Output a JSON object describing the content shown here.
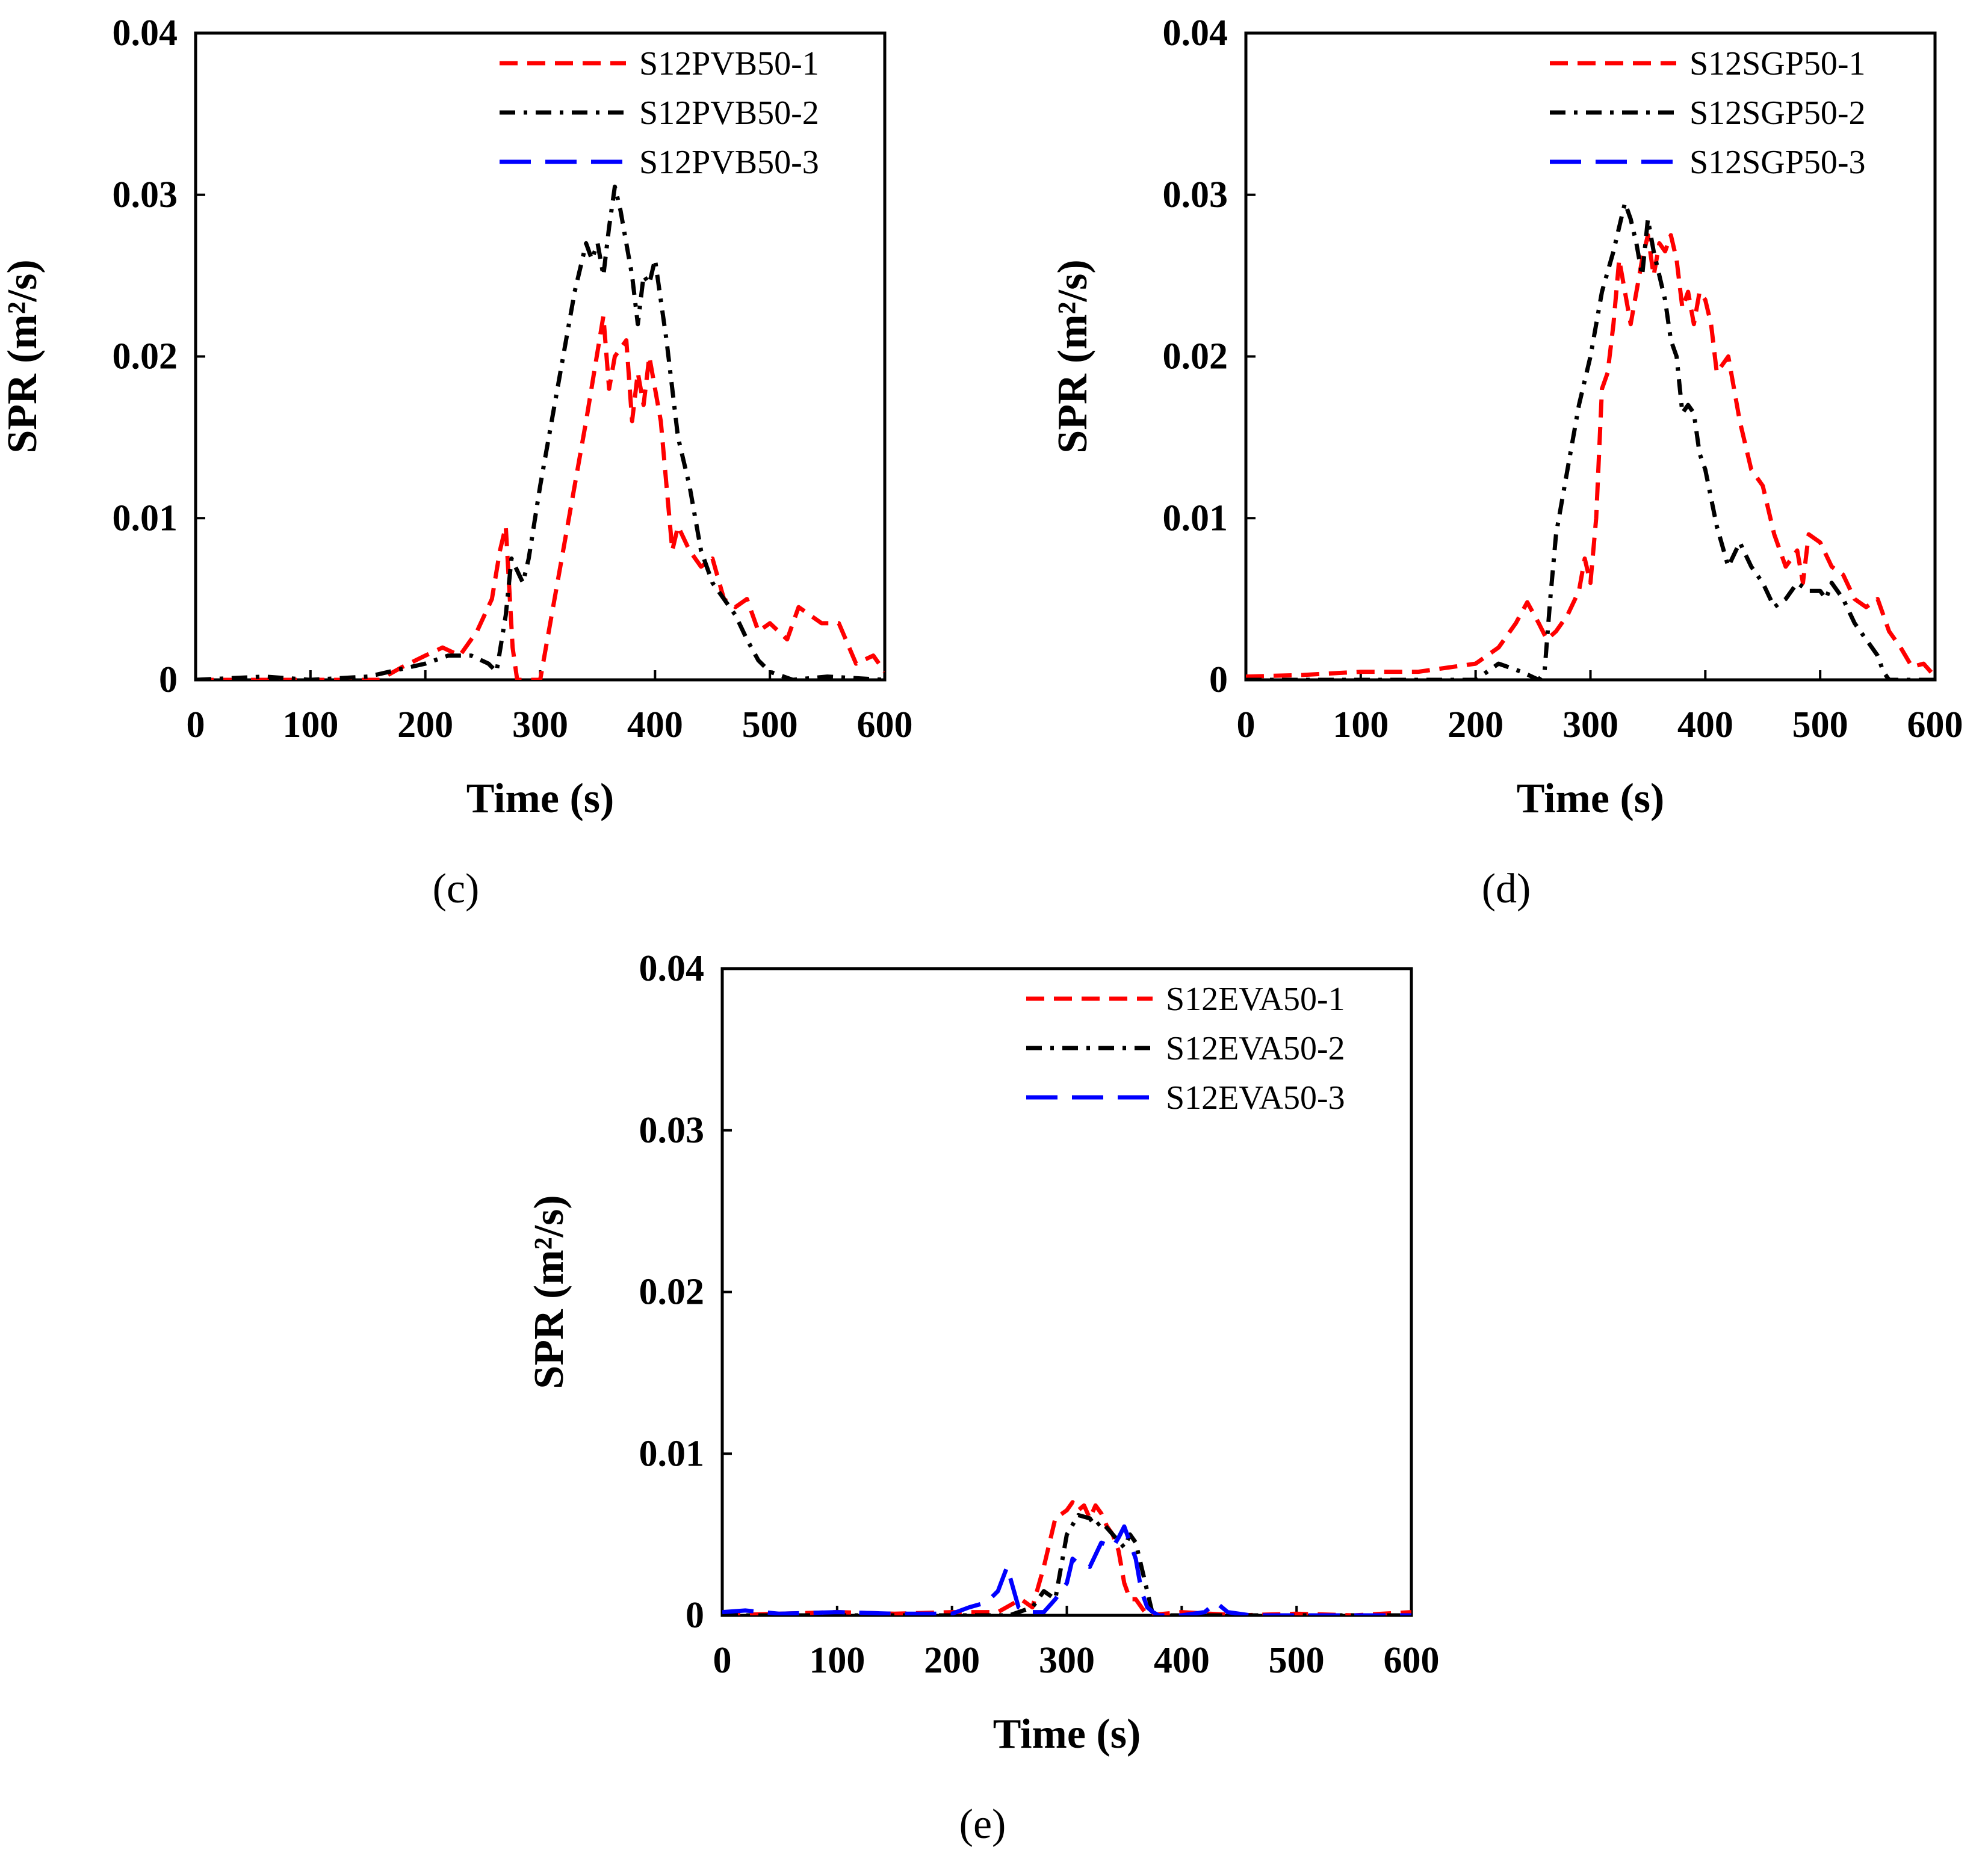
{
  "colors": {
    "s1": "#ff0000",
    "s2": "#000000",
    "s3": "#0000ff"
  },
  "chart_data": [
    {
      "type": "line",
      "panel_label": "(c)",
      "xlabel": "Time (s)",
      "ylabel": "SPR (m²/s)",
      "xlim": [
        0,
        600
      ],
      "ylim": [
        0,
        0.04
      ],
      "xticks": [
        0,
        100,
        200,
        300,
        400,
        500,
        600
      ],
      "yticks": [
        0,
        0.01,
        0.02,
        0.03,
        0.04
      ],
      "xtick_labels": [
        "0",
        "100",
        "200",
        "300",
        "400",
        "500",
        "600"
      ],
      "ytick_labels": [
        "0",
        "0.01",
        "0.02",
        "0.03",
        "0.04"
      ],
      "legend": "top-right",
      "series": [
        {
          "name": "S12PVB50-1",
          "style": "dashed",
          "color": "#ff0000",
          "x": [
            0,
            100,
            160,
            180,
            200,
            215,
            230,
            245,
            258,
            265,
            270,
            276,
            280,
            300,
            305,
            320,
            340,
            355,
            360,
            365,
            375,
            380,
            385,
            390,
            395,
            405,
            410,
            415,
            420,
            430,
            440,
            450,
            460,
            470,
            480,
            490,
            500,
            515,
            525,
            535,
            545,
            560,
            575,
            590,
            600
          ],
          "y": [
            0,
            0,
            0,
            0.0008,
            0.0015,
            0.002,
            0.0015,
            0.003,
            0.005,
            0.008,
            0.0095,
            0.002,
            0,
            0,
            0.002,
            0.008,
            0.016,
            0.0225,
            0.018,
            0.02,
            0.021,
            0.016,
            0.019,
            0.017,
            0.02,
            0.016,
            0.012,
            0.008,
            0.0095,
            0.008,
            0.007,
            0.0075,
            0.005,
            0.0045,
            0.005,
            0.003,
            0.0035,
            0.0025,
            0.0045,
            0.004,
            0.0035,
            0.0035,
            0.001,
            0.0015,
            0.0005
          ]
        },
        {
          "name": "S12PVB50-2",
          "style": "dashdot",
          "color": "#000000",
          "x": [
            0,
            60,
            100,
            150,
            200,
            220,
            240,
            255,
            262,
            270,
            275,
            285,
            290,
            300,
            310,
            320,
            330,
            340,
            345,
            350,
            355,
            360,
            365,
            370,
            375,
            380,
            385,
            390,
            395,
            400,
            410,
            420,
            430,
            440,
            450,
            460,
            470,
            480,
            490,
            500,
            520,
            550,
            600
          ],
          "y": [
            0,
            0.0002,
            0,
            0.0002,
            0.001,
            0.0015,
            0.0015,
            0.001,
            0.0005,
            0.004,
            0.0075,
            0.006,
            0.0075,
            0.012,
            0.016,
            0.02,
            0.024,
            0.027,
            0.026,
            0.027,
            0.025,
            0.028,
            0.0305,
            0.029,
            0.027,
            0.025,
            0.022,
            0.025,
            0.0245,
            0.026,
            0.021,
            0.015,
            0.012,
            0.008,
            0.006,
            0.005,
            0.004,
            0.0025,
            0.0012,
            0.0005,
            0,
            0.0002,
            0
          ]
        }
      ]
    },
    {
      "type": "line",
      "panel_label": "(d)",
      "xlabel": "Time (s)",
      "ylabel": "SPR (m²/s)",
      "xlim": [
        0,
        600
      ],
      "ylim": [
        0,
        0.04
      ],
      "xticks": [
        0,
        100,
        200,
        300,
        400,
        500,
        600
      ],
      "yticks": [
        0,
        0.01,
        0.02,
        0.03,
        0.04
      ],
      "xtick_labels": [
        "0",
        "100",
        "200",
        "300",
        "400",
        "500",
        "600"
      ],
      "ytick_labels": [
        "0",
        "0.01",
        "0.02",
        "0.03",
        "0.04"
      ],
      "legend": "top-right",
      "series": [
        {
          "name": "S12SGP50-1",
          "style": "dashed",
          "color": "#ff0000",
          "x": [
            0,
            50,
            100,
            150,
            180,
            200,
            220,
            235,
            245,
            255,
            262,
            270,
            280,
            290,
            295,
            300,
            305,
            310,
            315,
            320,
            325,
            330,
            335,
            345,
            350,
            355,
            360,
            365,
            370,
            375,
            380,
            385,
            390,
            395,
            400,
            405,
            410,
            420,
            430,
            440,
            450,
            460,
            470,
            480,
            485,
            490,
            500,
            510,
            520,
            530,
            540,
            550,
            560,
            570,
            580,
            590,
            600
          ],
          "y": [
            0.0002,
            0.0003,
            0.0005,
            0.0005,
            0.0008,
            0.001,
            0.002,
            0.0035,
            0.0048,
            0.0035,
            0.0025,
            0.003,
            0.004,
            0.0055,
            0.0075,
            0.006,
            0.01,
            0.018,
            0.019,
            0.022,
            0.026,
            0.024,
            0.022,
            0.026,
            0.0275,
            0.025,
            0.027,
            0.0265,
            0.0275,
            0.026,
            0.023,
            0.024,
            0.022,
            0.024,
            0.0235,
            0.022,
            0.019,
            0.02,
            0.016,
            0.013,
            0.012,
            0.009,
            0.007,
            0.008,
            0.006,
            0.009,
            0.0085,
            0.007,
            0.0065,
            0.005,
            0.0045,
            0.005,
            0.003,
            0.002,
            0.0008,
            0.001,
            0.0002
          ]
        },
        {
          "name": "S12SGP50-2",
          "style": "dashdot",
          "color": "#000000",
          "x": [
            0,
            50,
            100,
            150,
            200,
            210,
            220,
            240,
            255,
            260,
            265,
            270,
            280,
            290,
            300,
            310,
            320,
            325,
            330,
            335,
            340,
            345,
            350,
            355,
            360,
            365,
            370,
            375,
            380,
            385,
            390,
            395,
            400,
            410,
            420,
            430,
            440,
            450,
            460,
            470,
            480,
            490,
            500,
            505,
            510,
            520,
            530,
            540,
            550,
            555,
            560,
            600
          ],
          "y": [
            0,
            0,
            0,
            0,
            0,
            0.0005,
            0.001,
            0.0005,
            0,
            0.0005,
            0.005,
            0.009,
            0.013,
            0.017,
            0.02,
            0.024,
            0.0265,
            0.028,
            0.0295,
            0.0285,
            0.027,
            0.025,
            0.0285,
            0.0265,
            0.025,
            0.0235,
            0.021,
            0.02,
            0.0165,
            0.017,
            0.0165,
            0.014,
            0.013,
            0.0095,
            0.007,
            0.0085,
            0.007,
            0.006,
            0.0045,
            0.005,
            0.006,
            0.0055,
            0.0055,
            0.005,
            0.006,
            0.005,
            0.0035,
            0.0025,
            0.0015,
            0.0005,
            0,
            0
          ]
        }
      ]
    },
    {
      "type": "line",
      "panel_label": "(e)",
      "xlabel": "Time (s)",
      "ylabel": "SPR (m²/s)",
      "xlim": [
        0,
        600
      ],
      "ylim": [
        0,
        0.04
      ],
      "xticks": [
        0,
        100,
        200,
        300,
        400,
        500,
        600
      ],
      "yticks": [
        0,
        0.01,
        0.02,
        0.03,
        0.04
      ],
      "xtick_labels": [
        "0",
        "100",
        "200",
        "300",
        "400",
        "500",
        "600"
      ],
      "ytick_labels": [
        "0",
        "0.01",
        "0.02",
        "0.03",
        "0.04"
      ],
      "legend": "top-right",
      "series": [
        {
          "name": "S12EVA50-1",
          "style": "dashed",
          "color": "#ff0000",
          "x": [
            0,
            50,
            100,
            150,
            200,
            240,
            260,
            270,
            280,
            290,
            300,
            305,
            310,
            315,
            320,
            325,
            330,
            335,
            340,
            345,
            350,
            355,
            360,
            365,
            370,
            400,
            450,
            500,
            550,
            600
          ],
          "y": [
            0,
            0.0001,
            0.0002,
            0.0001,
            0.0002,
            0.0002,
            0.001,
            0.0005,
            0.003,
            0.006,
            0.0065,
            0.007,
            0.0065,
            0.0068,
            0.006,
            0.0068,
            0.0063,
            0.0055,
            0.005,
            0.004,
            0.002,
            0.001,
            0.001,
            0.0005,
            0,
            0.0002,
            0,
            0.0001,
            0,
            0.0002
          ]
        },
        {
          "name": "S12EVA50-2",
          "style": "dashdot",
          "color": "#000000",
          "x": [
            0,
            100,
            200,
            250,
            270,
            280,
            290,
            300,
            310,
            320,
            325,
            330,
            340,
            350,
            355,
            360,
            365,
            375,
            400,
            600
          ],
          "y": [
            0,
            0,
            0,
            0,
            0.0005,
            0.0015,
            0.001,
            0.005,
            0.0062,
            0.006,
            0.0055,
            0.0058,
            0.005,
            0.0042,
            0.005,
            0.0045,
            0.003,
            0,
            0,
            0
          ]
        },
        {
          "name": "S12EVA50-3",
          "style": "longdash",
          "color": "#0000ff",
          "x": [
            0,
            20,
            50,
            100,
            150,
            200,
            215,
            230,
            240,
            248,
            252,
            258,
            265,
            280,
            290,
            300,
            305,
            310,
            320,
            330,
            340,
            345,
            350,
            355,
            360,
            365,
            370,
            375,
            380,
            400,
            420,
            430,
            440,
            460,
            500,
            600
          ],
          "y": [
            0.0002,
            0.0003,
            0.0001,
            0.0002,
            0.0001,
            0.0001,
            0.0005,
            0.0008,
            0.0015,
            0.003,
            0.002,
            0.0005,
            0.0002,
            0.0002,
            0.001,
            0.002,
            0.0035,
            0.0032,
            0.003,
            0.0045,
            0.0042,
            0.0048,
            0.0055,
            0.0045,
            0.0035,
            0.0015,
            0.0005,
            0.0002,
            0,
            0,
            0.0002,
            0.0008,
            0.0002,
            0,
            0,
            0
          ]
        }
      ]
    }
  ]
}
